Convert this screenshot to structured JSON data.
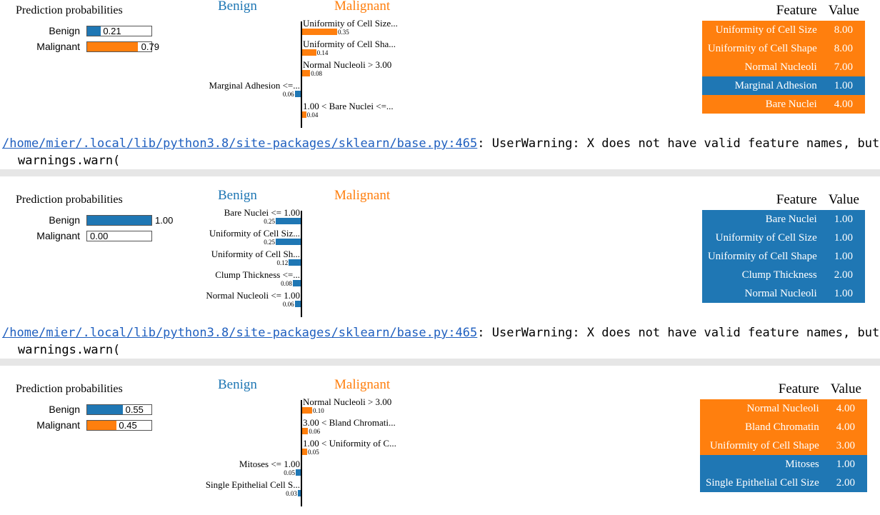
{
  "explanations": [
    {
      "pred_title": "Prediction probabilities",
      "proba": [
        {
          "label": "Benign",
          "value": 0.21,
          "text": "0.21"
        },
        {
          "label": "Malignant",
          "value": 0.79,
          "text": "0.79"
        }
      ],
      "neg_header": "Benign",
      "pos_header": "Malignant",
      "features": [
        {
          "label": "Uniformity of Cell Size...",
          "weight": 0.35,
          "weight_text": "0.35",
          "side": "pos"
        },
        {
          "label": "Uniformity of Cell Sha...",
          "weight": 0.14,
          "weight_text": "0.14",
          "side": "pos"
        },
        {
          "label": "Normal Nucleoli > 3.00",
          "weight": 0.08,
          "weight_text": "0.08",
          "side": "pos"
        },
        {
          "label": "Marginal Adhesion <=...",
          "weight": 0.06,
          "weight_text": "0.06",
          "side": "neg"
        },
        {
          "label": "1.00 < Bare Nuclei <=...",
          "weight": 0.04,
          "weight_text": "0.04",
          "side": "pos"
        }
      ],
      "table_headers": {
        "feature": "Feature",
        "value": "Value"
      },
      "table_rows": [
        {
          "feature": "Uniformity of Cell Size",
          "value": "8.00",
          "side": "pos"
        },
        {
          "feature": "Uniformity of Cell Shape",
          "value": "8.00",
          "side": "pos"
        },
        {
          "feature": "Normal Nucleoli",
          "value": "7.00",
          "side": "pos"
        },
        {
          "feature": "Marginal Adhesion",
          "value": "1.00",
          "side": "neg"
        },
        {
          "feature": "Bare Nuclei",
          "value": "4.00",
          "side": "pos"
        }
      ]
    },
    {
      "pred_title": "Prediction probabilities",
      "proba": [
        {
          "label": "Benign",
          "value": 1.0,
          "text": "1.00"
        },
        {
          "label": "Malignant",
          "value": 0.0,
          "text": "0.00"
        }
      ],
      "neg_header": "Benign",
      "pos_header": "Malignant",
      "features": [
        {
          "label": "Bare Nuclei <= 1.00",
          "weight": 0.25,
          "weight_text": "0.25",
          "side": "neg"
        },
        {
          "label": "Uniformity of Cell Siz...",
          "weight": 0.25,
          "weight_text": "0.25",
          "side": "neg"
        },
        {
          "label": "Uniformity of Cell Sh...",
          "weight": 0.12,
          "weight_text": "0.12",
          "side": "neg"
        },
        {
          "label": "Clump Thickness <=...",
          "weight": 0.08,
          "weight_text": "0.08",
          "side": "neg"
        },
        {
          "label": "Normal Nucleoli <= 1.00",
          "weight": 0.06,
          "weight_text": "0.06",
          "side": "neg"
        }
      ],
      "table_headers": {
        "feature": "Feature",
        "value": "Value"
      },
      "table_rows": [
        {
          "feature": "Bare Nuclei",
          "value": "1.00",
          "side": "neg"
        },
        {
          "feature": "Uniformity of Cell Size",
          "value": "1.00",
          "side": "neg"
        },
        {
          "feature": "Uniformity of Cell Shape",
          "value": "1.00",
          "side": "neg"
        },
        {
          "feature": "Clump Thickness",
          "value": "2.00",
          "side": "neg"
        },
        {
          "feature": "Normal Nucleoli",
          "value": "1.00",
          "side": "neg"
        }
      ]
    },
    {
      "pred_title": "Prediction probabilities",
      "proba": [
        {
          "label": "Benign",
          "value": 0.55,
          "text": "0.55"
        },
        {
          "label": "Malignant",
          "value": 0.45,
          "text": "0.45"
        }
      ],
      "neg_header": "Benign",
      "pos_header": "Malignant",
      "features": [
        {
          "label": "Normal Nucleoli > 3.00",
          "weight": 0.1,
          "weight_text": "0.10",
          "side": "pos"
        },
        {
          "label": "3.00 < Bland Chromati...",
          "weight": 0.06,
          "weight_text": "0.06",
          "side": "pos"
        },
        {
          "label": "1.00 < Uniformity of C...",
          "weight": 0.05,
          "weight_text": "0.05",
          "side": "pos"
        },
        {
          "label": "Mitoses <= 1.00",
          "weight": 0.05,
          "weight_text": "0.05",
          "side": "neg"
        },
        {
          "label": "Single Epithelial Cell S...",
          "weight": 0.03,
          "weight_text": "0.03",
          "side": "neg"
        }
      ],
      "table_headers": {
        "feature": "Feature",
        "value": "Value"
      },
      "table_rows": [
        {
          "feature": "Normal Nucleoli",
          "value": "4.00",
          "side": "pos"
        },
        {
          "feature": "Bland Chromatin",
          "value": "4.00",
          "side": "pos"
        },
        {
          "feature": "Uniformity of Cell Shape",
          "value": "3.00",
          "side": "pos"
        },
        {
          "feature": "Mitoses",
          "value": "1.00",
          "side": "neg"
        },
        {
          "feature": "Single Epithelial Cell Size",
          "value": "2.00",
          "side": "neg"
        }
      ]
    }
  ],
  "warnings": [
    {
      "path": "/home/mier/.local/lib/python3.8/site-packages/sklearn/base.py:465",
      "message": ": UserWarning: X does not have valid feature names, but RandomForestClassifier was fitted with feature names",
      "call": "warnings.warn("
    },
    {
      "path": "/home/mier/.local/lib/python3.8/site-packages/sklearn/base.py:465",
      "message": ": UserWarning: X does not have valid feature names, but RandomForestClassifier was fitted with feature names",
      "call": "warnings.warn("
    }
  ],
  "colors": {
    "neg": "#1f77b4",
    "pos": "#ff7f0e"
  }
}
